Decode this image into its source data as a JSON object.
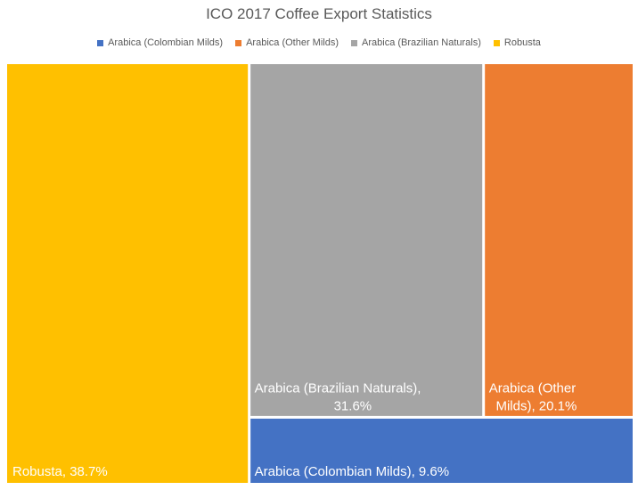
{
  "chart_data": {
    "type": "treemap",
    "title": "ICO 2017 Coffee Export Statistics",
    "legend_position": "top",
    "categories": [
      "Arabica (Colombian Milds)",
      "Arabica (Other Milds)",
      "Arabica (Brazilian Naturals)",
      "Robusta"
    ],
    "values": [
      9.6,
      20.1,
      31.6,
      38.7
    ],
    "unit": "%",
    "colors": {
      "Arabica (Colombian Milds)": "#4472C4",
      "Arabica (Other Milds)": "#ED7D31",
      "Arabica (Brazilian Naturals)": "#A5A5A5",
      "Robusta": "#FFC000"
    },
    "tiles": [
      {
        "category": "Robusta",
        "value": 38.7,
        "label_lines": [
          "Robusta, 38.7%"
        ]
      },
      {
        "category": "Arabica (Brazilian Naturals)",
        "value": 31.6,
        "label_lines": [
          "Arabica (Brazilian Naturals),",
          "31.6%"
        ]
      },
      {
        "category": "Arabica (Other Milds)",
        "value": 20.1,
        "label_lines": [
          "Arabica (Other",
          "Milds), 20.1%"
        ]
      },
      {
        "category": "Arabica (Colombian Milds)",
        "value": 9.6,
        "label_lines": [
          "Arabica (Colombian Milds), 9.6%"
        ]
      }
    ]
  }
}
